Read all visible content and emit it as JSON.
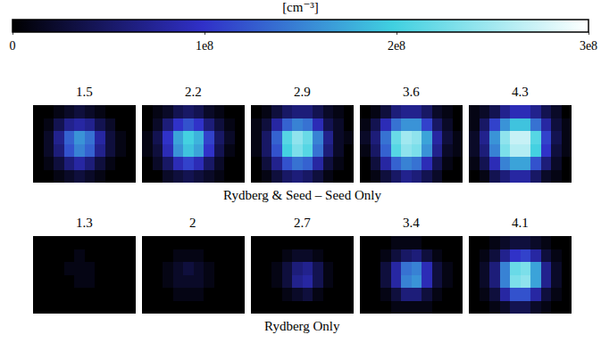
{
  "chart_data": {
    "type": "heatmap",
    "tick_labels": false,
    "colorbar": {
      "title": "[cm⁻³]",
      "range": [
        0,
        300000000.0
      ],
      "ticks": [
        0,
        {
          "value": 100000000.0,
          "label": "1e8"
        },
        {
          "value": 200000000.0,
          "label": "2e8"
        },
        {
          "value": 300000000.0,
          "label": "3e8"
        }
      ]
    },
    "groups": [
      {
        "caption": "Rydberg & Seed – Seed Only",
        "panels": [
          {
            "label": 1.5,
            "cells": [
              [
                0,
                0,
                10000000.0,
                20000000.0,
                30000000.0,
                20000000.0,
                10000000.0,
                0,
                0,
                0
              ],
              [
                0,
                10000000.0,
                40000000.0,
                70000000.0,
                80000000.0,
                70000000.0,
                40000000.0,
                20000000.0,
                0,
                0
              ],
              [
                0,
                20000000.0,
                70000000.0,
                130000000.0,
                160000000.0,
                140000000.0,
                80000000.0,
                30000000.0,
                10000000.0,
                0
              ],
              [
                0,
                20000000.0,
                60000000.0,
                120000000.0,
                150000000.0,
                130000000.0,
                70000000.0,
                30000000.0,
                10000000.0,
                0
              ],
              [
                0,
                10000000.0,
                30000000.0,
                60000000.0,
                80000000.0,
                60000000.0,
                30000000.0,
                10000000.0,
                0,
                0
              ],
              [
                0,
                0,
                10000000.0,
                20000000.0,
                30000000.0,
                20000000.0,
                10000000.0,
                0,
                0,
                0
              ]
            ]
          },
          {
            "label": 2.2,
            "cells": [
              [
                0,
                10000000.0,
                20000000.0,
                40000000.0,
                50000000.0,
                40000000.0,
                20000000.0,
                10000000.0,
                0,
                0
              ],
              [
                0,
                20000000.0,
                60000000.0,
                100000000.0,
                120000000.0,
                100000000.0,
                60000000.0,
                30000000.0,
                10000000.0,
                0
              ],
              [
                10000000.0,
                40000000.0,
                100000000.0,
                170000000.0,
                200000000.0,
                180000000.0,
                110000000.0,
                50000000.0,
                20000000.0,
                0
              ],
              [
                10000000.0,
                30000000.0,
                90000000.0,
                160000000.0,
                190000000.0,
                170000000.0,
                100000000.0,
                40000000.0,
                10000000.0,
                0
              ],
              [
                0,
                20000000.0,
                50000000.0,
                90000000.0,
                110000000.0,
                90000000.0,
                50000000.0,
                20000000.0,
                0,
                0
              ],
              [
                0,
                0,
                20000000.0,
                30000000.0,
                40000000.0,
                30000000.0,
                20000000.0,
                10000000.0,
                0,
                0
              ]
            ]
          },
          {
            "label": 2.9,
            "cells": [
              [
                0,
                10000000.0,
                30000000.0,
                50000000.0,
                60000000.0,
                60000000.0,
                40000000.0,
                20000000.0,
                10000000.0,
                0
              ],
              [
                10000000.0,
                30000000.0,
                80000000.0,
                130000000.0,
                150000000.0,
                140000000.0,
                90000000.0,
                40000000.0,
                20000000.0,
                0
              ],
              [
                10000000.0,
                50000000.0,
                130000000.0,
                210000000.0,
                240000000.0,
                220000000.0,
                150000000.0,
                70000000.0,
                20000000.0,
                10000000.0
              ],
              [
                10000000.0,
                50000000.0,
                120000000.0,
                200000000.0,
                230000000.0,
                210000000.0,
                140000000.0,
                60000000.0,
                20000000.0,
                0
              ],
              [
                0,
                30000000.0,
                70000000.0,
                120000000.0,
                140000000.0,
                130000000.0,
                80000000.0,
                30000000.0,
                10000000.0,
                0
              ],
              [
                0,
                10000000.0,
                30000000.0,
                50000000.0,
                60000000.0,
                50000000.0,
                30000000.0,
                10000000.0,
                0,
                0
              ]
            ]
          },
          {
            "label": 3.6,
            "cells": [
              [
                0,
                10000000.0,
                30000000.0,
                60000000.0,
                70000000.0,
                70000000.0,
                50000000.0,
                20000000.0,
                10000000.0,
                0
              ],
              [
                10000000.0,
                40000000.0,
                90000000.0,
                140000000.0,
                160000000.0,
                160000000.0,
                110000000.0,
                50000000.0,
                20000000.0,
                0
              ],
              [
                20000000.0,
                60000000.0,
                140000000.0,
                220000000.0,
                250000000.0,
                240000000.0,
                170000000.0,
                80000000.0,
                30000000.0,
                10000000.0
              ],
              [
                10000000.0,
                50000000.0,
                130000000.0,
                210000000.0,
                240000000.0,
                230000000.0,
                160000000.0,
                70000000.0,
                20000000.0,
                10000000.0
              ],
              [
                0,
                30000000.0,
                80000000.0,
                130000000.0,
                150000000.0,
                140000000.0,
                90000000.0,
                40000000.0,
                10000000.0,
                0
              ],
              [
                0,
                10000000.0,
                30000000.0,
                50000000.0,
                70000000.0,
                60000000.0,
                40000000.0,
                20000000.0,
                0,
                0
              ]
            ]
          },
          {
            "label": 4.3,
            "cells": [
              [
                10000000.0,
                20000000.0,
                40000000.0,
                70000000.0,
                90000000.0,
                90000000.0,
                70000000.0,
                40000000.0,
                20000000.0,
                0
              ],
              [
                10000000.0,
                50000000.0,
                110000000.0,
                160000000.0,
                190000000.0,
                190000000.0,
                140000000.0,
                80000000.0,
                30000000.0,
                10000000.0
              ],
              [
                20000000.0,
                70000000.0,
                160000000.0,
                240000000.0,
                270000000.0,
                270000000.0,
                210000000.0,
                110000000.0,
                40000000.0,
                10000000.0
              ],
              [
                20000000.0,
                60000000.0,
                150000000.0,
                230000000.0,
                260000000.0,
                260000000.0,
                200000000.0,
                100000000.0,
                30000000.0,
                10000000.0
              ],
              [
                10000000.0,
                40000000.0,
                90000000.0,
                150000000.0,
                170000000.0,
                170000000.0,
                120000000.0,
                60000000.0,
                20000000.0,
                0
              ],
              [
                0,
                10000000.0,
                40000000.0,
                60000000.0,
                80000000.0,
                80000000.0,
                50000000.0,
                20000000.0,
                10000000.0,
                0
              ]
            ]
          }
        ]
      },
      {
        "caption": "Rydberg Only",
        "panels": [
          {
            "label": 1.3,
            "cells": [
              [
                0,
                0,
                0,
                0,
                0,
                0,
                0,
                0,
                0,
                0
              ],
              [
                0,
                0,
                0,
                0,
                10000000.0,
                0,
                0,
                0,
                0,
                0
              ],
              [
                0,
                0,
                0,
                10000000.0,
                10000000.0,
                10000000.0,
                0,
                0,
                0,
                0
              ],
              [
                0,
                0,
                0,
                0,
                10000000.0,
                10000000.0,
                0,
                0,
                0,
                0
              ],
              [
                0,
                0,
                0,
                0,
                0,
                0,
                0,
                0,
                0,
                0
              ],
              [
                0,
                0,
                0,
                0,
                0,
                0,
                0,
                0,
                0,
                0
              ]
            ]
          },
          {
            "label": 2,
            "cells": [
              [
                0,
                0,
                0,
                0,
                0,
                0,
                0,
                0,
                0,
                0
              ],
              [
                0,
                0,
                0,
                10000000.0,
                10000000.0,
                10000000.0,
                0,
                0,
                0,
                0
              ],
              [
                0,
                0,
                10000000.0,
                20000000.0,
                30000000.0,
                20000000.0,
                10000000.0,
                0,
                0,
                0
              ],
              [
                0,
                0,
                10000000.0,
                20000000.0,
                20000000.0,
                20000000.0,
                10000000.0,
                0,
                0,
                0
              ],
              [
                0,
                0,
                0,
                10000000.0,
                10000000.0,
                10000000.0,
                0,
                0,
                0,
                0
              ],
              [
                0,
                0,
                0,
                0,
                0,
                0,
                0,
                0,
                0,
                0
              ]
            ]
          },
          {
            "label": 2.7,
            "cells": [
              [
                0,
                0,
                0,
                0,
                0,
                0,
                0,
                0,
                0,
                0
              ],
              [
                0,
                0,
                0,
                10000000.0,
                20000000.0,
                20000000.0,
                10000000.0,
                0,
                0,
                0
              ],
              [
                0,
                0,
                10000000.0,
                30000000.0,
                60000000.0,
                70000000.0,
                40000000.0,
                10000000.0,
                0,
                0
              ],
              [
                0,
                0,
                10000000.0,
                30000000.0,
                70000000.0,
                80000000.0,
                40000000.0,
                10000000.0,
                0,
                0
              ],
              [
                0,
                0,
                0,
                10000000.0,
                20000000.0,
                30000000.0,
                10000000.0,
                0,
                0,
                0
              ],
              [
                0,
                0,
                0,
                0,
                0,
                0,
                0,
                0,
                0,
                0
              ]
            ]
          },
          {
            "label": 3.4,
            "cells": [
              [
                0,
                0,
                0,
                10000000.0,
                10000000.0,
                10000000.0,
                0,
                0,
                0,
                0
              ],
              [
                0,
                0,
                10000000.0,
                30000000.0,
                50000000.0,
                60000000.0,
                30000000.0,
                10000000.0,
                0,
                0
              ],
              [
                0,
                0,
                30000000.0,
                80000000.0,
                140000000.0,
                150000000.0,
                90000000.0,
                30000000.0,
                10000000.0,
                0
              ],
              [
                0,
                0,
                30000000.0,
                80000000.0,
                150000000.0,
                160000000.0,
                90000000.0,
                30000000.0,
                10000000.0,
                0
              ],
              [
                0,
                0,
                10000000.0,
                30000000.0,
                60000000.0,
                60000000.0,
                30000000.0,
                10000000.0,
                0,
                0
              ],
              [
                0,
                0,
                0,
                10000000.0,
                10000000.0,
                10000000.0,
                10000000.0,
                0,
                0,
                0
              ]
            ]
          },
          {
            "label": 4.1,
            "cells": [
              [
                0,
                0,
                10000000.0,
                20000000.0,
                30000000.0,
                30000000.0,
                20000000.0,
                10000000.0,
                0,
                0
              ],
              [
                0,
                10000000.0,
                30000000.0,
                70000000.0,
                100000000.0,
                110000000.0,
                80000000.0,
                30000000.0,
                10000000.0,
                0
              ],
              [
                0,
                20000000.0,
                60000000.0,
                150000000.0,
                220000000.0,
                230000000.0,
                170000000.0,
                70000000.0,
                20000000.0,
                0
              ],
              [
                0,
                20000000.0,
                60000000.0,
                150000000.0,
                230000000.0,
                240000000.0,
                170000000.0,
                70000000.0,
                20000000.0,
                0
              ],
              [
                0,
                10000000.0,
                30000000.0,
                80000000.0,
                120000000.0,
                120000000.0,
                80000000.0,
                30000000.0,
                10000000.0,
                0
              ],
              [
                0,
                0,
                10000000.0,
                20000000.0,
                40000000.0,
                40000000.0,
                20000000.0,
                10000000.0,
                0,
                0
              ]
            ]
          }
        ]
      }
    ]
  }
}
